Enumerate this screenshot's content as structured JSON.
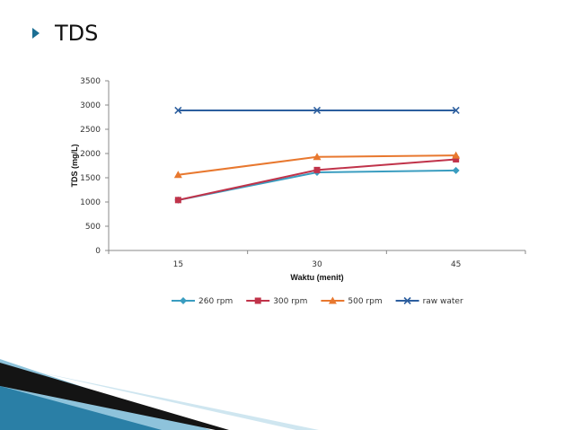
{
  "slide": {
    "title": "TDS",
    "accent_color": "#1b6e93"
  },
  "chart_data": {
    "type": "line",
    "title": "",
    "xlabel": "Waktu (menit)",
    "ylabel": "TDS (mg/L)",
    "categories": [
      "15",
      "30",
      "45"
    ],
    "ylim": [
      0,
      3500
    ],
    "yticks": [
      "0",
      "500",
      "1000",
      "1500",
      "2000",
      "2500",
      "3000",
      "3500"
    ],
    "grid": false,
    "legend": "bottom",
    "series": [
      {
        "name": "260 rpm",
        "values": [
          1040,
          1610,
          1650
        ],
        "color": "#3a9dc0",
        "marker": "diamond"
      },
      {
        "name": "300 rpm",
        "values": [
          1040,
          1660,
          1880
        ],
        "color": "#c0334a",
        "marker": "square"
      },
      {
        "name": "500 rpm",
        "values": [
          1560,
          1930,
          1960
        ],
        "color": "#e8782f",
        "marker": "triangle"
      },
      {
        "name": "raw water",
        "values": [
          2890,
          2890,
          2890
        ],
        "color": "#2c5e9e",
        "marker": "x"
      }
    ]
  }
}
